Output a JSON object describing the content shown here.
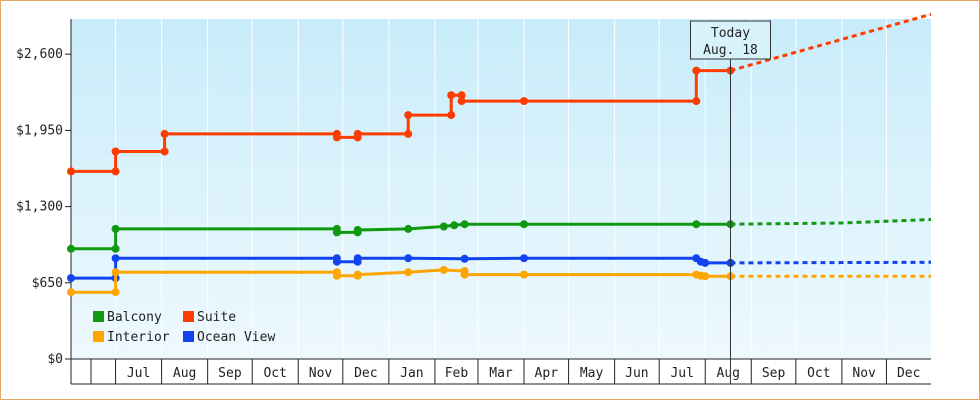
{
  "chart_data": {
    "type": "line",
    "title": "",
    "xlabel": "",
    "ylabel": "",
    "ylim": [
      0,
      2900
    ],
    "yticks": [
      {
        "value": 0,
        "label": "$0"
      },
      {
        "value": 650,
        "label": "$650"
      },
      {
        "value": 1300,
        "label": "$1,300"
      },
      {
        "value": 1950,
        "label": "$1,950"
      },
      {
        "value": 2600,
        "label": "$2,600"
      }
    ],
    "x_domain": [
      "2023-06-01",
      "2024-12-31"
    ],
    "months": [
      {
        "label": "Jul",
        "start": "2023-07-01"
      },
      {
        "label": "Aug",
        "start": "2023-08-01"
      },
      {
        "label": "Sep",
        "start": "2023-09-01"
      },
      {
        "label": "Oct",
        "start": "2023-10-01"
      },
      {
        "label": "Nov",
        "start": "2023-11-01"
      },
      {
        "label": "Dec",
        "start": "2023-12-01"
      },
      {
        "label": "Jan",
        "start": "2024-01-01"
      },
      {
        "label": "Feb",
        "start": "2024-02-01"
      },
      {
        "label": "Mar",
        "start": "2024-03-01"
      },
      {
        "label": "Apr",
        "start": "2024-04-01"
      },
      {
        "label": "May",
        "start": "2024-05-01"
      },
      {
        "label": "Jun",
        "start": "2024-06-01"
      },
      {
        "label": "Jul",
        "start": "2024-07-01"
      },
      {
        "label": "Aug",
        "start": "2024-08-01"
      },
      {
        "label": "Sep",
        "start": "2024-09-01"
      },
      {
        "label": "Oct",
        "start": "2024-10-01"
      },
      {
        "label": "Nov",
        "start": "2024-11-01"
      },
      {
        "label": "Dec",
        "start": "2024-12-01"
      }
    ],
    "today": {
      "label_line1": "Today",
      "label_line2": "Aug. 18",
      "date": "2024-08-18"
    },
    "legend": {
      "placement": "bottom-left"
    },
    "grid": {
      "vertical": true,
      "horizontal": false
    },
    "background": {
      "top": "#c8ecfa",
      "bottom": "#eef9fe"
    },
    "series": [
      {
        "name": "Suite",
        "color": "#ff3c00",
        "points": [
          {
            "x": "2023-06-01",
            "y": 1600
          },
          {
            "x": "2023-07-01",
            "y": 1600
          },
          {
            "x": "2023-07-01",
            "y": 1770
          },
          {
            "x": "2023-08-03",
            "y": 1770
          },
          {
            "x": "2023-08-03",
            "y": 1920
          },
          {
            "x": "2023-11-27",
            "y": 1920
          },
          {
            "x": "2023-11-27",
            "y": 1890
          },
          {
            "x": "2023-12-11",
            "y": 1890
          },
          {
            "x": "2023-12-11",
            "y": 1920
          },
          {
            "x": "2024-01-14",
            "y": 1920
          },
          {
            "x": "2024-01-14",
            "y": 2080
          },
          {
            "x": "2024-02-12",
            "y": 2080
          },
          {
            "x": "2024-02-12",
            "y": 2250
          },
          {
            "x": "2024-02-19",
            "y": 2250
          },
          {
            "x": "2024-02-19",
            "y": 2200
          },
          {
            "x": "2024-04-01",
            "y": 2200
          },
          {
            "x": "2024-07-26",
            "y": 2200
          },
          {
            "x": "2024-07-26",
            "y": 2460
          },
          {
            "x": "2024-08-18",
            "y": 2460
          }
        ],
        "projection": [
          {
            "x": "2024-08-18",
            "y": 2460
          },
          {
            "x": "2024-12-31",
            "y": 2940
          }
        ]
      },
      {
        "name": "Balcony",
        "color": "#119911",
        "points": [
          {
            "x": "2023-06-01",
            "y": 940
          },
          {
            "x": "2023-07-01",
            "y": 940
          },
          {
            "x": "2023-07-01",
            "y": 1110
          },
          {
            "x": "2023-11-27",
            "y": 1110
          },
          {
            "x": "2023-11-27",
            "y": 1080
          },
          {
            "x": "2023-12-11",
            "y": 1080
          },
          {
            "x": "2023-12-11",
            "y": 1100
          },
          {
            "x": "2024-01-14",
            "y": 1110
          },
          {
            "x": "2024-02-07",
            "y": 1130
          },
          {
            "x": "2024-02-14",
            "y": 1140
          },
          {
            "x": "2024-02-21",
            "y": 1150
          },
          {
            "x": "2024-04-01",
            "y": 1150
          },
          {
            "x": "2024-07-26",
            "y": 1150
          },
          {
            "x": "2024-08-18",
            "y": 1150
          }
        ],
        "projection": [
          {
            "x": "2024-08-18",
            "y": 1150
          },
          {
            "x": "2024-11-01",
            "y": 1160
          },
          {
            "x": "2024-12-31",
            "y": 1190
          }
        ]
      },
      {
        "name": "Ocean View",
        "color": "#1144ee",
        "points": [
          {
            "x": "2023-06-01",
            "y": 690
          },
          {
            "x": "2023-07-01",
            "y": 690
          },
          {
            "x": "2023-07-01",
            "y": 860
          },
          {
            "x": "2023-11-27",
            "y": 860
          },
          {
            "x": "2023-11-27",
            "y": 830
          },
          {
            "x": "2023-12-11",
            "y": 830
          },
          {
            "x": "2023-12-11",
            "y": 860
          },
          {
            "x": "2024-01-14",
            "y": 860
          },
          {
            "x": "2024-02-21",
            "y": 855
          },
          {
            "x": "2024-04-01",
            "y": 860
          },
          {
            "x": "2024-07-26",
            "y": 860
          },
          {
            "x": "2024-07-29",
            "y": 830
          },
          {
            "x": "2024-08-01",
            "y": 820
          },
          {
            "x": "2024-08-18",
            "y": 820
          }
        ],
        "projection": [
          {
            "x": "2024-08-18",
            "y": 820
          },
          {
            "x": "2024-12-31",
            "y": 825
          }
        ]
      },
      {
        "name": "Interior",
        "color": "#ffa500",
        "points": [
          {
            "x": "2023-06-01",
            "y": 570
          },
          {
            "x": "2023-07-01",
            "y": 570
          },
          {
            "x": "2023-07-01",
            "y": 740
          },
          {
            "x": "2023-11-27",
            "y": 740
          },
          {
            "x": "2023-11-27",
            "y": 710
          },
          {
            "x": "2023-12-11",
            "y": 710
          },
          {
            "x": "2023-12-11",
            "y": 720
          },
          {
            "x": "2024-01-14",
            "y": 740
          },
          {
            "x": "2024-02-07",
            "y": 760
          },
          {
            "x": "2024-02-21",
            "y": 750
          },
          {
            "x": "2024-02-21",
            "y": 720
          },
          {
            "x": "2024-04-01",
            "y": 720
          },
          {
            "x": "2024-07-26",
            "y": 720
          },
          {
            "x": "2024-07-29",
            "y": 710
          },
          {
            "x": "2024-08-01",
            "y": 705
          },
          {
            "x": "2024-08-18",
            "y": 705
          }
        ],
        "projection": [
          {
            "x": "2024-08-18",
            "y": 705
          },
          {
            "x": "2024-12-31",
            "y": 705
          }
        ]
      }
    ],
    "markers": {
      "Suite": [
        "2023-06-01",
        "2023-07-01",
        "2023-07-01",
        "2023-08-03",
        "2023-08-03",
        "2023-11-27",
        "2023-11-27",
        "2023-12-11",
        "2023-12-11",
        "2024-01-14",
        "2024-01-14",
        "2024-02-12",
        "2024-02-12",
        "2024-02-19",
        "2024-02-19",
        "2024-04-01",
        "2024-07-26",
        "2024-07-26",
        "2024-08-18"
      ],
      "Balcony": [
        "2023-06-01",
        "2023-07-01",
        "2023-07-01",
        "2023-11-27",
        "2023-11-27",
        "2023-12-11",
        "2023-12-11",
        "2024-01-14",
        "2024-02-07",
        "2024-02-14",
        "2024-02-21",
        "2024-04-01",
        "2024-07-26",
        "2024-08-18"
      ],
      "Ocean View": [
        "2023-06-01",
        "2023-07-01",
        "2023-07-01",
        "2023-11-27",
        "2023-11-27",
        "2023-12-11",
        "2023-12-11",
        "2024-01-14",
        "2024-02-21",
        "2024-04-01",
        "2024-07-26",
        "2024-07-29",
        "2024-08-01",
        "2024-08-18"
      ],
      "Interior": [
        "2023-06-01",
        "2023-07-01",
        "2023-07-01",
        "2023-11-27",
        "2023-11-27",
        "2023-12-11",
        "2023-12-11",
        "2024-01-14",
        "2024-02-07",
        "2024-02-21",
        "2024-02-21",
        "2024-04-01",
        "2024-07-26",
        "2024-07-29",
        "2024-08-01",
        "2024-08-18"
      ]
    },
    "legend_entries": [
      {
        "name": "Balcony",
        "color": "#119911"
      },
      {
        "name": "Suite",
        "color": "#ff3c00"
      },
      {
        "name": "Interior",
        "color": "#ffa500"
      },
      {
        "name": "Ocean View",
        "color": "#1144ee"
      }
    ]
  }
}
